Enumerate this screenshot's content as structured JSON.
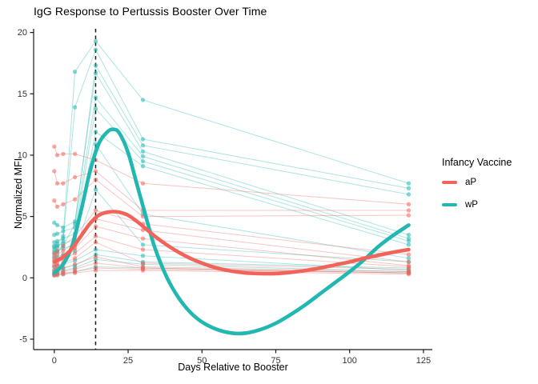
{
  "chart_data": {
    "type": "line",
    "title": "IgG Response to Pertussis Booster Over Time",
    "xlabel": "Days Relative to Booster",
    "ylabel": "Normalized MFI",
    "legend": {
      "title": "Infancy Vaccine",
      "position": "right"
    },
    "grid": false,
    "x_ticks": [
      0,
      25,
      50,
      75,
      100,
      125
    ],
    "y_ticks": [
      -5,
      0,
      5,
      10,
      15,
      20
    ],
    "x_domain": [
      -7,
      128
    ],
    "y_domain": [
      -5.85,
      20.3
    ],
    "vline_x": 14,
    "vline_style": "dashed",
    "vline_color": "#1a1a1a",
    "groups": [
      {
        "id": "aP",
        "label": "aP",
        "color": "#F2635A"
      },
      {
        "id": "wP",
        "label": "wP",
        "color": "#23B7B1"
      }
    ],
    "sample_days": [
      0,
      1,
      3,
      7,
      14,
      30,
      120
    ],
    "subjects": [
      {
        "group": "wP",
        "values": [
          2.6,
          2.8,
          3.4,
          16.8,
          19.3,
          14.5,
          7.7
        ]
      },
      {
        "group": "wP",
        "values": [
          2.3,
          2.5,
          3.0,
          13.9,
          18.6,
          11.3,
          7.3
        ]
      },
      {
        "group": "wP",
        "values": [
          1.9,
          2.1,
          2.6,
          4.4,
          17.3,
          10.8,
          6.8
        ]
      },
      {
        "group": "wP",
        "values": [
          4.5,
          4.3,
          4.1,
          4.6,
          16.7,
          10.3,
          3.5
        ]
      },
      {
        "group": "wP",
        "values": [
          3.5,
          3.6,
          3.8,
          4.1,
          14.7,
          9.9,
          3.2
        ]
      },
      {
        "group": "wP",
        "values": [
          2.9,
          3.0,
          3.2,
          3.6,
          13.8,
          9.5,
          3.0
        ]
      },
      {
        "group": "wP",
        "values": [
          2.5,
          2.6,
          2.8,
          3.1,
          11.9,
          9.1,
          2.7
        ]
      },
      {
        "group": "wP",
        "values": [
          2.1,
          2.2,
          2.4,
          2.7,
          10.9,
          5.2,
          1.6
        ]
      },
      {
        "group": "wP",
        "values": [
          1.6,
          1.7,
          1.9,
          2.2,
          7.2,
          2.7,
          1.3
        ]
      },
      {
        "group": "wP",
        "values": [
          0.9,
          1.0,
          1.1,
          1.4,
          2.3,
          1.8,
          0.6
        ]
      },
      {
        "group": "wP",
        "values": [
          0.6,
          0.7,
          0.8,
          1.0,
          1.9,
          1.3,
          0.8
        ]
      },
      {
        "group": "wP",
        "values": [
          0.4,
          0.5,
          0.6,
          0.8,
          1.5,
          1.1,
          0.5
        ]
      },
      {
        "group": "wP",
        "values": [
          0.2,
          0.3,
          0.3,
          0.5,
          0.9,
          0.8,
          0.4
        ]
      },
      {
        "group": "aP",
        "values": [
          10.7,
          10.0,
          10.1,
          10.1,
          9.6,
          7.7,
          6.0
        ]
      },
      {
        "group": "aP",
        "values": [
          8.7,
          7.7,
          7.7,
          8.2,
          8.7,
          5.5,
          5.5
        ]
      },
      {
        "group": "aP",
        "values": [
          6.3,
          5.8,
          6.0,
          6.4,
          8.0,
          5.0,
          5.1
        ]
      },
      {
        "group": "aP",
        "values": [
          2.0,
          2.2,
          2.6,
          3.4,
          5.5,
          4.4,
          1.9
        ]
      },
      {
        "group": "aP",
        "values": [
          1.7,
          1.9,
          2.2,
          2.9,
          4.8,
          3.9,
          1.3
        ]
      },
      {
        "group": "aP",
        "values": [
          1.4,
          1.5,
          1.8,
          2.4,
          4.2,
          3.2,
          1.0
        ]
      },
      {
        "group": "aP",
        "values": [
          1.1,
          1.2,
          1.5,
          2.0,
          3.4,
          2.3,
          0.9
        ]
      },
      {
        "group": "aP",
        "values": [
          0.9,
          1.0,
          1.2,
          1.6,
          2.9,
          1.2,
          0.7
        ]
      },
      {
        "group": "aP",
        "values": [
          0.6,
          0.7,
          0.8,
          1.1,
          1.7,
          0.9,
          0.5
        ]
      },
      {
        "group": "aP",
        "values": [
          0.4,
          0.4,
          0.5,
          0.7,
          1.2,
          0.8,
          0.4
        ]
      },
      {
        "group": "aP",
        "values": [
          0.3,
          0.3,
          0.4,
          0.5,
          0.8,
          0.7,
          0.4
        ]
      },
      {
        "group": "aP",
        "values": [
          0.2,
          0.2,
          0.3,
          0.4,
          0.6,
          0.6,
          0.3
        ]
      }
    ],
    "smooth": [
      {
        "group": "wP",
        "x": [
          0,
          3,
          6,
          9,
          12,
          15,
          18,
          20,
          22,
          25,
          28,
          31,
          34,
          38,
          42,
          46,
          50,
          55,
          60,
          65,
          70,
          75,
          80,
          85,
          90,
          95,
          100,
          105,
          110,
          115,
          120
        ],
        "y": [
          0.4,
          1.1,
          2.6,
          5.4,
          8.6,
          10.9,
          11.9,
          12.1,
          11.8,
          10.2,
          7.6,
          5.0,
          2.5,
          0.1,
          -1.6,
          -2.8,
          -3.6,
          -4.2,
          -4.5,
          -4.5,
          -4.2,
          -3.7,
          -3.0,
          -2.2,
          -1.3,
          -0.4,
          0.5,
          1.5,
          2.6,
          3.5,
          4.3
        ]
      },
      {
        "group": "aP",
        "x": [
          0,
          3,
          6,
          9,
          12,
          15,
          18,
          20,
          22,
          25,
          28,
          31,
          34,
          38,
          42,
          46,
          50,
          55,
          60,
          65,
          70,
          75,
          80,
          85,
          90,
          95,
          100,
          105,
          110,
          115,
          120
        ],
        "y": [
          1.3,
          1.7,
          2.4,
          3.4,
          4.4,
          5.1,
          5.35,
          5.4,
          5.35,
          5.1,
          4.6,
          4.0,
          3.4,
          2.7,
          2.1,
          1.6,
          1.2,
          0.8,
          0.55,
          0.4,
          0.35,
          0.35,
          0.45,
          0.6,
          0.8,
          1.05,
          1.3,
          1.6,
          1.85,
          2.1,
          2.3
        ]
      }
    ]
  }
}
